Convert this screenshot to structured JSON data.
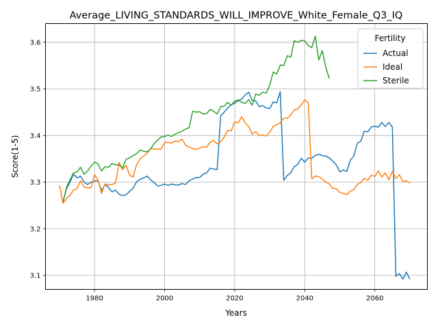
{
  "chart_data": {
    "type": "line",
    "title": "Average_LIVING_STANDARDS_WILL_IMPROVE_White_Female_Q3_IQ",
    "xlabel": "Years",
    "ylabel": "Score(1-5)",
    "xlim": [
      1966,
      2075
    ],
    "ylim": [
      3.07,
      3.64
    ],
    "xticks": [
      1980,
      2000,
      2020,
      2040,
      2060
    ],
    "yticks": [
      3.1,
      3.2,
      3.3,
      3.4,
      3.5,
      3.6
    ],
    "ytick_labels": [
      "3.1",
      "3.2",
      "3.3",
      "3.4",
      "3.5",
      "3.6"
    ],
    "grid": true,
    "legend": {
      "title": "Fertility",
      "placement": "top-right"
    },
    "series": [
      {
        "name": "Actual",
        "color": "#1f77b4",
        "points": [
          [
            1971,
            3.258
          ],
          [
            1972,
            3.286
          ],
          [
            1973,
            3.3
          ],
          [
            1974,
            3.317
          ],
          [
            1975,
            3.309
          ],
          [
            1976,
            3.313
          ],
          [
            1977,
            3.3
          ],
          [
            1978,
            3.295
          ],
          [
            1979,
            3.3
          ],
          [
            1980,
            3.302
          ],
          [
            1981,
            3.303
          ],
          [
            1982,
            3.281
          ],
          [
            1983,
            3.295
          ],
          [
            1984,
            3.288
          ],
          [
            1985,
            3.279
          ],
          [
            1986,
            3.283
          ],
          [
            1987,
            3.274
          ],
          [
            1988,
            3.271
          ],
          [
            1989,
            3.273
          ],
          [
            1990,
            3.28
          ],
          [
            1991,
            3.287
          ],
          [
            1992,
            3.301
          ],
          [
            1993,
            3.306
          ],
          [
            1994,
            3.309
          ],
          [
            1995,
            3.313
          ],
          [
            1996,
            3.305
          ],
          [
            1997,
            3.299
          ],
          [
            1998,
            3.292
          ],
          [
            1999,
            3.293
          ],
          [
            2000,
            3.296
          ],
          [
            2001,
            3.293
          ],
          [
            2002,
            3.296
          ],
          [
            2003,
            3.294
          ],
          [
            2004,
            3.294
          ],
          [
            2005,
            3.297
          ],
          [
            2006,
            3.295
          ],
          [
            2007,
            3.303
          ],
          [
            2008,
            3.307
          ],
          [
            2009,
            3.31
          ],
          [
            2010,
            3.31
          ],
          [
            2011,
            3.317
          ],
          [
            2012,
            3.32
          ],
          [
            2013,
            3.33
          ],
          [
            2014,
            3.328
          ],
          [
            2015,
            3.327
          ],
          [
            2016,
            3.442
          ],
          [
            2017,
            3.45
          ],
          [
            2018,
            3.459
          ],
          [
            2019,
            3.466
          ],
          [
            2020,
            3.469
          ],
          [
            2021,
            3.475
          ],
          [
            2022,
            3.478
          ],
          [
            2023,
            3.487
          ],
          [
            2024,
            3.493
          ],
          [
            2025,
            3.475
          ],
          [
            2026,
            3.474
          ],
          [
            2027,
            3.462
          ],
          [
            2028,
            3.464
          ],
          [
            2029,
            3.459
          ],
          [
            2030,
            3.458
          ],
          [
            2031,
            3.472
          ],
          [
            2032,
            3.47
          ],
          [
            2033,
            3.494
          ],
          [
            2034,
            3.304
          ],
          [
            2035,
            3.314
          ],
          [
            2036,
            3.32
          ],
          [
            2037,
            3.333
          ],
          [
            2038,
            3.338
          ],
          [
            2039,
            3.351
          ],
          [
            2040,
            3.343
          ],
          [
            2041,
            3.352
          ],
          [
            2042,
            3.351
          ],
          [
            2043,
            3.357
          ],
          [
            2044,
            3.36
          ],
          [
            2045,
            3.357
          ],
          [
            2046,
            3.356
          ],
          [
            2047,
            3.352
          ],
          [
            2048,
            3.345
          ],
          [
            2049,
            3.337
          ],
          [
            2050,
            3.322
          ],
          [
            2051,
            3.326
          ],
          [
            2052,
            3.323
          ],
          [
            2053,
            3.347
          ],
          [
            2054,
            3.356
          ],
          [
            2055,
            3.383
          ],
          [
            2056,
            3.388
          ],
          [
            2057,
            3.409
          ],
          [
            2058,
            3.408
          ],
          [
            2059,
            3.418
          ],
          [
            2060,
            3.42
          ],
          [
            2061,
            3.418
          ],
          [
            2062,
            3.428
          ],
          [
            2063,
            3.419
          ],
          [
            2064,
            3.428
          ],
          [
            2065,
            3.418
          ],
          [
            2066,
            3.098
          ],
          [
            2067,
            3.104
          ],
          [
            2068,
            3.092
          ],
          [
            2069,
            3.107
          ],
          [
            2070,
            3.092
          ]
        ]
      },
      {
        "name": "Ideal",
        "color": "#ff7f0e",
        "points": [
          [
            1970,
            3.293
          ],
          [
            1971,
            3.255
          ],
          [
            1972,
            3.265
          ],
          [
            1973,
            3.272
          ],
          [
            1974,
            3.283
          ],
          [
            1975,
            3.286
          ],
          [
            1976,
            3.303
          ],
          [
            1977,
            3.29
          ],
          [
            1978,
            3.288
          ],
          [
            1979,
            3.288
          ],
          [
            1980,
            3.316
          ],
          [
            1981,
            3.304
          ],
          [
            1982,
            3.276
          ],
          [
            1983,
            3.296
          ],
          [
            1984,
            3.294
          ],
          [
            1985,
            3.295
          ],
          [
            1986,
            3.298
          ],
          [
            1987,
            3.342
          ],
          [
            1988,
            3.327
          ],
          [
            1989,
            3.336
          ],
          [
            1990,
            3.315
          ],
          [
            1991,
            3.311
          ],
          [
            1992,
            3.337
          ],
          [
            1993,
            3.35
          ],
          [
            1994,
            3.356
          ],
          [
            1995,
            3.362
          ],
          [
            1996,
            3.372
          ],
          [
            1997,
            3.371
          ],
          [
            1998,
            3.371
          ],
          [
            1999,
            3.371
          ],
          [
            2000,
            3.385
          ],
          [
            2001,
            3.385
          ],
          [
            2002,
            3.384
          ],
          [
            2003,
            3.388
          ],
          [
            2004,
            3.387
          ],
          [
            2005,
            3.392
          ],
          [
            2006,
            3.379
          ],
          [
            2007,
            3.375
          ],
          [
            2008,
            3.372
          ],
          [
            2009,
            3.37
          ],
          [
            2010,
            3.373
          ],
          [
            2011,
            3.376
          ],
          [
            2012,
            3.375
          ],
          [
            2013,
            3.386
          ],
          [
            2014,
            3.389
          ],
          [
            2015,
            3.382
          ],
          [
            2016,
            3.387
          ],
          [
            2017,
            3.397
          ],
          [
            2018,
            3.411
          ],
          [
            2019,
            3.41
          ],
          [
            2020,
            3.429
          ],
          [
            2021,
            3.427
          ],
          [
            2022,
            3.44
          ],
          [
            2023,
            3.427
          ],
          [
            2024,
            3.419
          ],
          [
            2025,
            3.403
          ],
          [
            2026,
            3.408
          ],
          [
            2027,
            3.4
          ],
          [
            2028,
            3.401
          ],
          [
            2029,
            3.399
          ],
          [
            2030,
            3.407
          ],
          [
            2031,
            3.42
          ],
          [
            2032,
            3.423
          ],
          [
            2033,
            3.427
          ],
          [
            2034,
            3.437
          ],
          [
            2035,
            3.437
          ],
          [
            2036,
            3.444
          ],
          [
            2037,
            3.455
          ],
          [
            2038,
            3.457
          ],
          [
            2039,
            3.466
          ],
          [
            2040,
            3.476
          ],
          [
            2041,
            3.47
          ],
          [
            2042,
            3.307
          ],
          [
            2043,
            3.313
          ],
          [
            2044,
            3.312
          ],
          [
            2045,
            3.307
          ],
          [
            2046,
            3.3
          ],
          [
            2047,
            3.296
          ],
          [
            2048,
            3.287
          ],
          [
            2049,
            3.286
          ],
          [
            2050,
            3.278
          ],
          [
            2051,
            3.276
          ],
          [
            2052,
            3.273
          ],
          [
            2053,
            3.281
          ],
          [
            2054,
            3.284
          ],
          [
            2055,
            3.295
          ],
          [
            2056,
            3.299
          ],
          [
            2057,
            3.308
          ],
          [
            2058,
            3.304
          ],
          [
            2059,
            3.315
          ],
          [
            2060,
            3.312
          ],
          [
            2061,
            3.324
          ],
          [
            2062,
            3.311
          ],
          [
            2063,
            3.32
          ],
          [
            2064,
            3.305
          ],
          [
            2065,
            3.323
          ],
          [
            2066,
            3.308
          ],
          [
            2067,
            3.316
          ],
          [
            2068,
            3.301
          ],
          [
            2069,
            3.303
          ],
          [
            2070,
            3.298
          ]
        ]
      },
      {
        "name": "Sterile",
        "color": "#2ca02c",
        "points": [
          [
            1971,
            3.257
          ],
          [
            1972,
            3.289
          ],
          [
            1973,
            3.305
          ],
          [
            1974,
            3.32
          ],
          [
            1975,
            3.322
          ],
          [
            1976,
            3.332
          ],
          [
            1977,
            3.317
          ],
          [
            1978,
            3.324
          ],
          [
            1979,
            3.334
          ],
          [
            1980,
            3.343
          ],
          [
            1981,
            3.339
          ],
          [
            1982,
            3.324
          ],
          [
            1983,
            3.333
          ],
          [
            1984,
            3.332
          ],
          [
            1985,
            3.34
          ],
          [
            1986,
            3.337
          ],
          [
            1987,
            3.337
          ],
          [
            1988,
            3.331
          ],
          [
            1989,
            3.349
          ],
          [
            1990,
            3.352
          ],
          [
            1991,
            3.357
          ],
          [
            1992,
            3.361
          ],
          [
            1993,
            3.369
          ],
          [
            1994,
            3.366
          ],
          [
            1995,
            3.365
          ],
          [
            1996,
            3.371
          ],
          [
            1997,
            3.383
          ],
          [
            1998,
            3.39
          ],
          [
            1999,
            3.397
          ],
          [
            2000,
            3.398
          ],
          [
            2001,
            3.401
          ],
          [
            2002,
            3.398
          ],
          [
            2003,
            3.403
          ],
          [
            2004,
            3.406
          ],
          [
            2005,
            3.409
          ],
          [
            2006,
            3.414
          ],
          [
            2007,
            3.417
          ],
          [
            2008,
            3.452
          ],
          [
            2009,
            3.45
          ],
          [
            2010,
            3.451
          ],
          [
            2011,
            3.446
          ],
          [
            2012,
            3.447
          ],
          [
            2013,
            3.456
          ],
          [
            2014,
            3.452
          ],
          [
            2015,
            3.446
          ],
          [
            2016,
            3.462
          ],
          [
            2017,
            3.463
          ],
          [
            2018,
            3.471
          ],
          [
            2019,
            3.465
          ],
          [
            2020,
            3.474
          ],
          [
            2021,
            3.476
          ],
          [
            2022,
            3.471
          ],
          [
            2023,
            3.469
          ],
          [
            2024,
            3.477
          ],
          [
            2025,
            3.465
          ],
          [
            2026,
            3.489
          ],
          [
            2027,
            3.486
          ],
          [
            2028,
            3.493
          ],
          [
            2029,
            3.491
          ],
          [
            2030,
            3.508
          ],
          [
            2031,
            3.536
          ],
          [
            2032,
            3.532
          ],
          [
            2033,
            3.551
          ],
          [
            2034,
            3.55
          ],
          [
            2035,
            3.571
          ],
          [
            2036,
            3.568
          ],
          [
            2037,
            3.603
          ],
          [
            2038,
            3.6
          ],
          [
            2039,
            3.604
          ],
          [
            2040,
            3.603
          ],
          [
            2041,
            3.593
          ],
          [
            2042,
            3.588
          ],
          [
            2043,
            3.613
          ],
          [
            2044,
            3.562
          ],
          [
            2045,
            3.582
          ],
          [
            2046,
            3.546
          ],
          [
            2047,
            3.522
          ]
        ]
      }
    ]
  }
}
